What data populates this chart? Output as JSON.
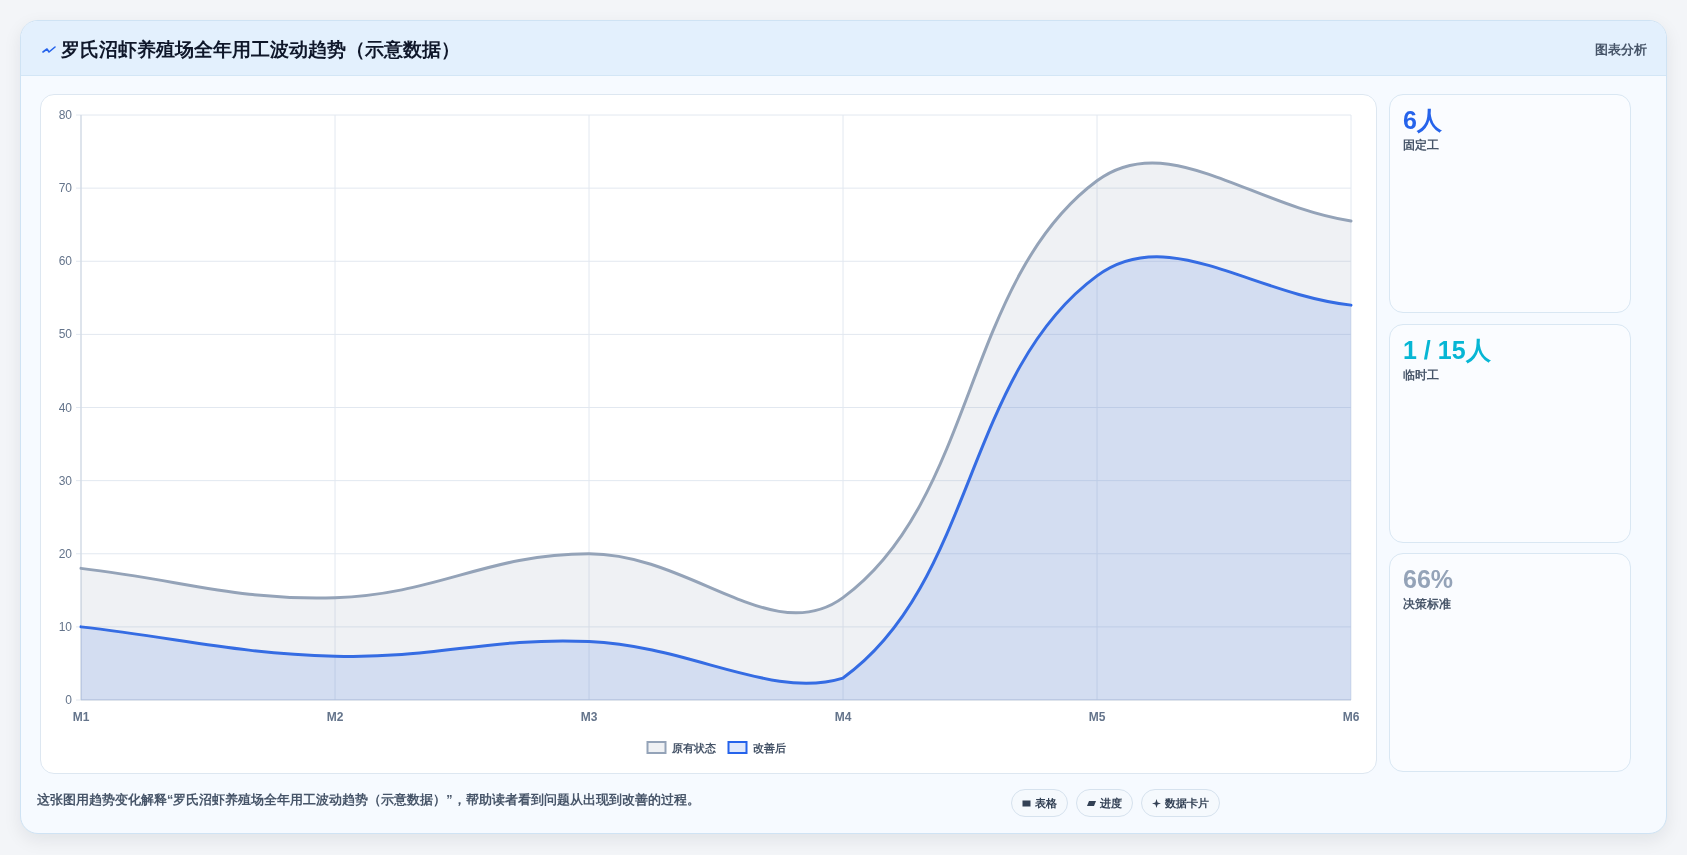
{
  "chart_data": [
    {
      "type": "area",
      "title": "罗氏沼虾养殖场全年用工波动趋势（示意数据）",
      "categories": [
        "M1",
        "M2",
        "M3",
        "M4",
        "M5",
        "M6"
      ],
      "series": [
        {
          "name": "原有状态",
          "color": "#94a3b8",
          "values": [
            18,
            14,
            20,
            14,
            71,
            65.5
          ]
        },
        {
          "name": "改善后",
          "color": "#2563eb",
          "values": [
            10,
            6,
            8,
            3,
            58,
            54
          ]
        }
      ],
      "ylim": [
        0,
        80
      ],
      "yticks": [
        0,
        10,
        20,
        30,
        40,
        50,
        60,
        70,
        80
      ],
      "grid": true,
      "legend": "bottom",
      "annotations": [
        "图表分析",
        "这张图用趋势变化解释“罗氏沼虾养殖场全年用工波动趋势（示意数据）”，帮助读者看到问题从出现到改善的过程。",
        "表格",
        "进度",
        "数据卡片"
      ]
    },
    {
      "type": "other",
      "title": "6人",
      "subtitle": "固定工",
      "color": "#2563eb"
    },
    {
      "type": "other",
      "title": "1 / 15人",
      "subtitle": "临时工",
      "color": "#06b6d4"
    },
    {
      "type": "other",
      "title": "66%",
      "subtitle": "决策标准",
      "color": "#94a3b8"
    }
  ]
}
